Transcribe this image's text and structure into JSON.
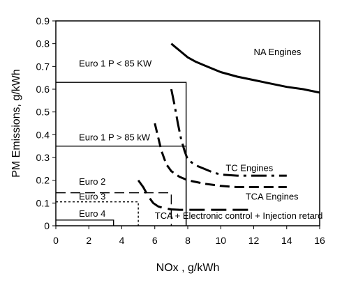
{
  "chart_data": {
    "type": "line",
    "title": "",
    "xlabel": "NOx , g/kWh",
    "ylabel": "PM Emissions, g/kWh",
    "xlim": [
      0,
      16
    ],
    "ylim": [
      0,
      0.9
    ],
    "x_ticks": [
      "0",
      "2",
      "4",
      "6",
      "8",
      "10",
      "12",
      "14",
      "16"
    ],
    "y_ticks": [
      "0",
      "0.1",
      "0.2",
      "0.3",
      "0.4",
      "0.5",
      "0.6",
      "0.7",
      "0.8",
      "0.9"
    ],
    "grid": false,
    "limits": [
      {
        "label": "Euro 1 P < 85 KW",
        "nox": 7.9,
        "pm": 0.63,
        "style": "solid",
        "label_pos": [
          1.4,
          0.7
        ]
      },
      {
        "label": "Euro 1 P > 85 kW",
        "nox": 7.9,
        "pm": 0.35,
        "style": "solid",
        "label_pos": [
          1.4,
          0.375
        ]
      },
      {
        "label": "Euro 2",
        "nox": 7.0,
        "pm": 0.145,
        "style": "dashed",
        "label_pos": [
          1.4,
          0.18
        ]
      },
      {
        "label": "Euro 3",
        "nox": 5.0,
        "pm": 0.105,
        "style": "dotted",
        "label_pos": [
          1.4,
          0.115
        ]
      },
      {
        "label": "Euro 4",
        "nox": 3.5,
        "pm": 0.025,
        "style": "solid",
        "label_pos": [
          1.4,
          0.04
        ]
      }
    ],
    "series": [
      {
        "name": "NA Engines",
        "style": "solid",
        "x": [
          7.0,
          7.5,
          8.0,
          8.5,
          9.0,
          9.5,
          10.0,
          11.0,
          12.0,
          13.0,
          14.0,
          15.0,
          16.0
        ],
        "y": [
          0.8,
          0.77,
          0.74,
          0.72,
          0.705,
          0.69,
          0.675,
          0.655,
          0.64,
          0.625,
          0.61,
          0.6,
          0.585
        ],
        "label_pos": [
          12.0,
          0.75
        ]
      },
      {
        "name": "TC Engines",
        "style": "longdashdot",
        "x": [
          7.0,
          7.2,
          7.4,
          7.6,
          7.8,
          8.0,
          8.5,
          9.0,
          9.5,
          10.0,
          11.0,
          12.0,
          13.0,
          14.0
        ],
        "y": [
          0.6,
          0.53,
          0.45,
          0.38,
          0.33,
          0.29,
          0.265,
          0.25,
          0.235,
          0.225,
          0.22,
          0.22,
          0.22,
          0.22
        ],
        "label_pos": [
          10.3,
          0.24
        ]
      },
      {
        "name": "",
        "style": "dashed",
        "x": [
          6.0,
          6.2,
          6.4,
          6.7,
          7.0,
          7.5,
          8.0,
          9.0,
          10.0,
          11.0,
          12.0,
          13.0,
          14.0
        ],
        "y": [
          0.45,
          0.39,
          0.33,
          0.27,
          0.24,
          0.215,
          0.2,
          0.185,
          0.175,
          0.17,
          0.17,
          0.17,
          0.17
        ],
        "label_pos": null
      },
      {
        "name": "TCA Engines",
        "style": "longdash",
        "x": [
          5.0,
          5.3,
          5.6,
          5.9,
          6.2,
          6.5,
          7.0,
          7.5,
          8.0,
          9.0,
          10.0,
          11.0,
          12.0
        ],
        "y": [
          0.2,
          0.17,
          0.13,
          0.1,
          0.085,
          0.078,
          0.072,
          0.07,
          0.07,
          0.07,
          0.07,
          0.07,
          0.07
        ],
        "label_pos": [
          11.5,
          0.115
        ]
      }
    ],
    "annotations": [
      {
        "text": "TCA + Electronic control + Injection retard",
        "pos": [
          6.0,
          0.03
        ]
      }
    ]
  }
}
